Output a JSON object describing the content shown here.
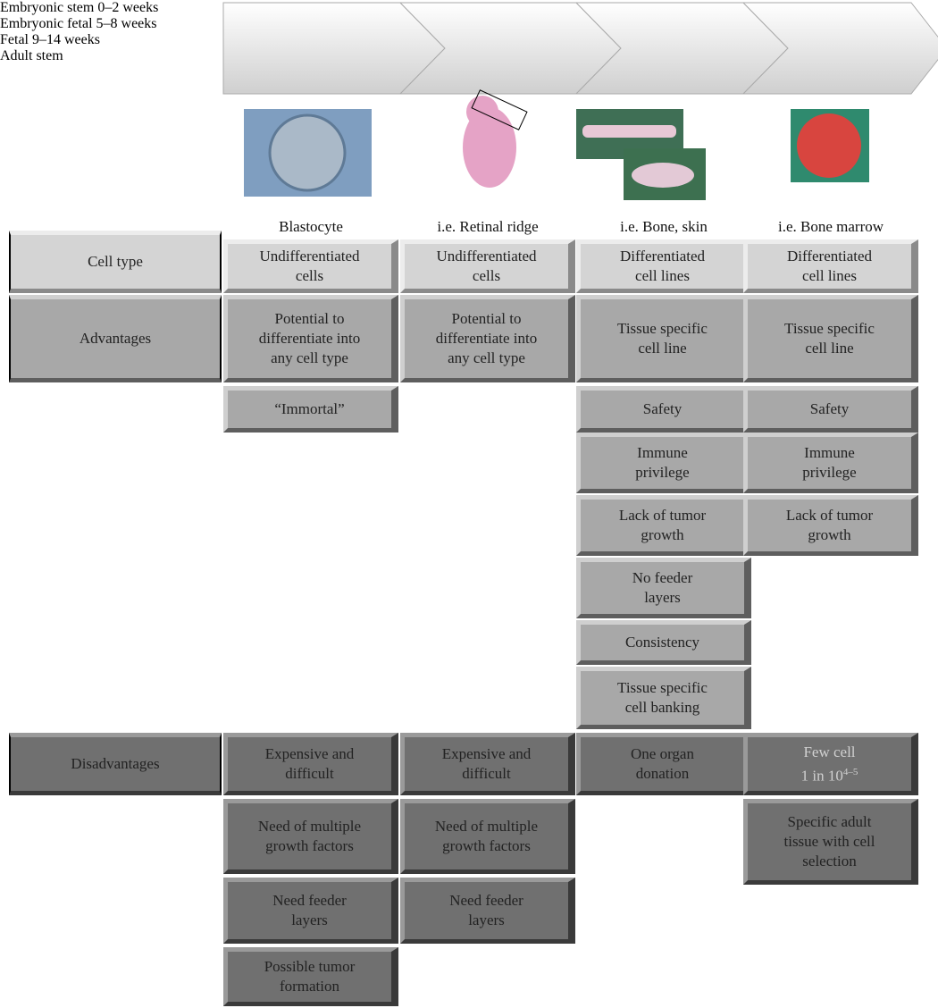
{
  "stages": [
    "Embryonic\nstem\n0–2 weeks",
    "Embryonic\nfetal\n5–8 weeks",
    "Fetal\n9–14 weeks",
    "Adult stem"
  ],
  "sources": [
    "Blastocyte",
    "i.e. Retinal ridge",
    "i.e. Bone, skin",
    "i.e. Bone marrow"
  ],
  "rows": [
    {
      "label": "Cell type",
      "cells": [
        "Undifferentiated\ncells",
        "Undifferentiated\ncells",
        "Differentiated\ncell lines",
        "Differentiated\ncell lines"
      ]
    },
    {
      "label": "Advantages",
      "cells": [
        "Potential to\ndifferentiate into\nany cell type",
        "Potential to\ndifferentiate into\nany cell type",
        "Tissue specific\ncell line",
        "Tissue specific\ncell line"
      ]
    },
    {
      "label": "Disadvantages",
      "cells": [
        "Expensive and\ndifficult",
        "Expensive and\ndifficult",
        "One organ\ndonation",
        {
          "text": "Few cell\n1 in 10",
          "sup": "4–5"
        }
      ]
    }
  ],
  "advantages_more": [
    [
      "“Immortal”"
    ],
    [],
    [
      "Safety",
      "Immune\nprivilege",
      "Lack of tumor\ngrowth",
      "No feeder\nlayers",
      "Consistency",
      "Tissue specific\ncell banking"
    ],
    [
      "Safety",
      "Immune\nprivilege",
      "Lack of tumor\ngrowth"
    ]
  ],
  "disadvantages_more": [
    [
      "Need of multiple\ngrowth factors",
      "Need feeder\nlayers",
      "Possible tumor\nformation"
    ],
    [
      "Need of multiple\ngrowth factors",
      "Need feeder\nlayers"
    ],
    [],
    [
      "Specific adult\ntissue with cell\nselection"
    ]
  ]
}
